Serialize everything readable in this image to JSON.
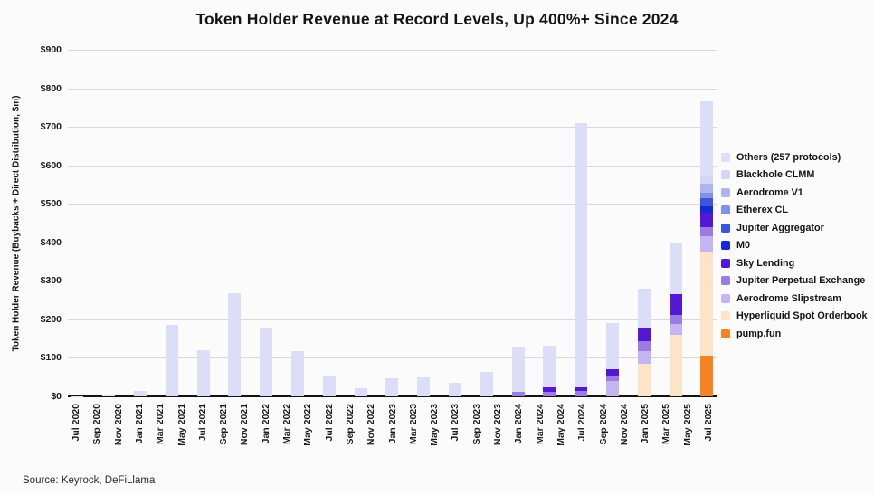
{
  "source": "Source: Keyrock, DeFiLlama",
  "chart_data": {
    "type": "bar",
    "stacked": true,
    "title": "Token Holder Revenue at Record Levels, Up 400%+ Since 2024",
    "ylabel": "Token Holder Revenue (Buybacks + Direct Distribution, $m)",
    "xlabel": "",
    "ylim": [
      0,
      900
    ],
    "grid": true,
    "legend_position": "right",
    "y_tick_labels": [
      "$0",
      "$100",
      "$200",
      "$300",
      "$400",
      "$500",
      "$600",
      "$700",
      "$800",
      "$900"
    ],
    "x_tick_labels": [
      "Jul 2020",
      "Sep 2020",
      "Nov 2020",
      "Jan 2021",
      "Mar 2021",
      "May 2021",
      "Jul 2021",
      "Sep 2021",
      "Nov 2021",
      "Jan 2022",
      "Mar 2022",
      "May 2022",
      "Jul 2022",
      "Sep 2022",
      "Nov 2022",
      "Jan 2023",
      "Mar 2023",
      "May 2023",
      "Jul 2023",
      "Sep 2023",
      "Nov 2023",
      "Jan 2024",
      "Mar 2024",
      "May 2024",
      "Jul 2024",
      "Sep 2024",
      "Nov 2024",
      "Jan 2025",
      "Mar 2025",
      "May 2025",
      "Jul 2025"
    ],
    "bar_interval": "quarterly",
    "label_interval": "bimonthly",
    "series": [
      {
        "name": "pump.fun",
        "color": "#f5831f"
      },
      {
        "name": "Hyperliquid Spot Orderbook",
        "color": "#fbe4c8"
      },
      {
        "name": "Aerodrome Slipstream",
        "color": "#c4b4f0"
      },
      {
        "name": "Jupiter Perpetual Exchange",
        "color": "#9a7ce4"
      },
      {
        "name": "Sky Lending",
        "color": "#5318d4"
      },
      {
        "name": "M0",
        "color": "#1629da"
      },
      {
        "name": "Jupiter Aggregator",
        "color": "#3b55e3"
      },
      {
        "name": "Etherex CL",
        "color": "#8190e9"
      },
      {
        "name": "Aerodrome V1",
        "color": "#aeb5ee"
      },
      {
        "name": "Blackhole CLMM",
        "color": "#d3d6f4"
      },
      {
        "name": "Others (257 protocols)",
        "color": "#dcdef7"
      }
    ],
    "bars": [
      {
        "period": "Jul 2020",
        "values": [
          0,
          0,
          0,
          0,
          0,
          0,
          0,
          0,
          0,
          0,
          1
        ]
      },
      {
        "period": "Oct 2020",
        "values": [
          0,
          0,
          0,
          0,
          0,
          0,
          0,
          0,
          0,
          0,
          2
        ]
      },
      {
        "period": "Jan 2021",
        "values": [
          0,
          0,
          0,
          0,
          0,
          0,
          0,
          0,
          0,
          0,
          15
        ]
      },
      {
        "period": "Apr 2021",
        "values": [
          0,
          0,
          0,
          0,
          0,
          0,
          0,
          0,
          0,
          0,
          185
        ]
      },
      {
        "period": "Jul 2021",
        "values": [
          0,
          0,
          0,
          0,
          0,
          0,
          0,
          0,
          0,
          0,
          120
        ]
      },
      {
        "period": "Oct 2021",
        "values": [
          0,
          0,
          0,
          0,
          0,
          0,
          0,
          0,
          0,
          0,
          268
        ]
      },
      {
        "period": "Jan 2022",
        "values": [
          0,
          0,
          0,
          0,
          0,
          0,
          0,
          0,
          0,
          0,
          177
        ]
      },
      {
        "period": "Apr 2022",
        "values": [
          0,
          0,
          0,
          0,
          0,
          0,
          0,
          0,
          0,
          0,
          118
        ]
      },
      {
        "period": "Jul 2022",
        "values": [
          0,
          0,
          0,
          0,
          0,
          0,
          0,
          0,
          0,
          0,
          55
        ]
      },
      {
        "period": "Oct 2022",
        "values": [
          0,
          0,
          0,
          0,
          0,
          0,
          0,
          0,
          0,
          0,
          22
        ]
      },
      {
        "period": "Jan 2023",
        "values": [
          0,
          0,
          0,
          0,
          0,
          0,
          0,
          0,
          0,
          0,
          48
        ]
      },
      {
        "period": "Apr 2023",
        "values": [
          0,
          0,
          0,
          0,
          0,
          0,
          0,
          0,
          0,
          0,
          50
        ]
      },
      {
        "period": "Jul 2023",
        "values": [
          0,
          0,
          0,
          0,
          0,
          0,
          0,
          0,
          0,
          0,
          36
        ]
      },
      {
        "period": "Oct 2023",
        "values": [
          0,
          0,
          0,
          0,
          0,
          0,
          0,
          0,
          0,
          0,
          64
        ]
      },
      {
        "period": "Jan 2024",
        "values": [
          0,
          0,
          0,
          12,
          0,
          0,
          0,
          0,
          0,
          0,
          118
        ]
      },
      {
        "period": "Apr 2024",
        "values": [
          0,
          0,
          0,
          12,
          12,
          0,
          0,
          0,
          0,
          0,
          108
        ]
      },
      {
        "period": "Jul 2024",
        "values": [
          0,
          0,
          0,
          15,
          8,
          0,
          0,
          0,
          0,
          0,
          687
        ]
      },
      {
        "period": "Oct 2024",
        "values": [
          0,
          0,
          40,
          15,
          15,
          0,
          0,
          0,
          0,
          0,
          120
        ]
      },
      {
        "period": "Jan 2025",
        "values": [
          0,
          85,
          32,
          26,
          36,
          0,
          0,
          0,
          0,
          0,
          101
        ]
      },
      {
        "period": "Apr 2025",
        "values": [
          0,
          160,
          28,
          23,
          55,
          0,
          0,
          0,
          0,
          0,
          134
        ]
      },
      {
        "period": "Jul 2025",
        "values": [
          105,
          270,
          40,
          24,
          39,
          15,
          21,
          14,
          24,
          21,
          192
        ]
      }
    ]
  }
}
